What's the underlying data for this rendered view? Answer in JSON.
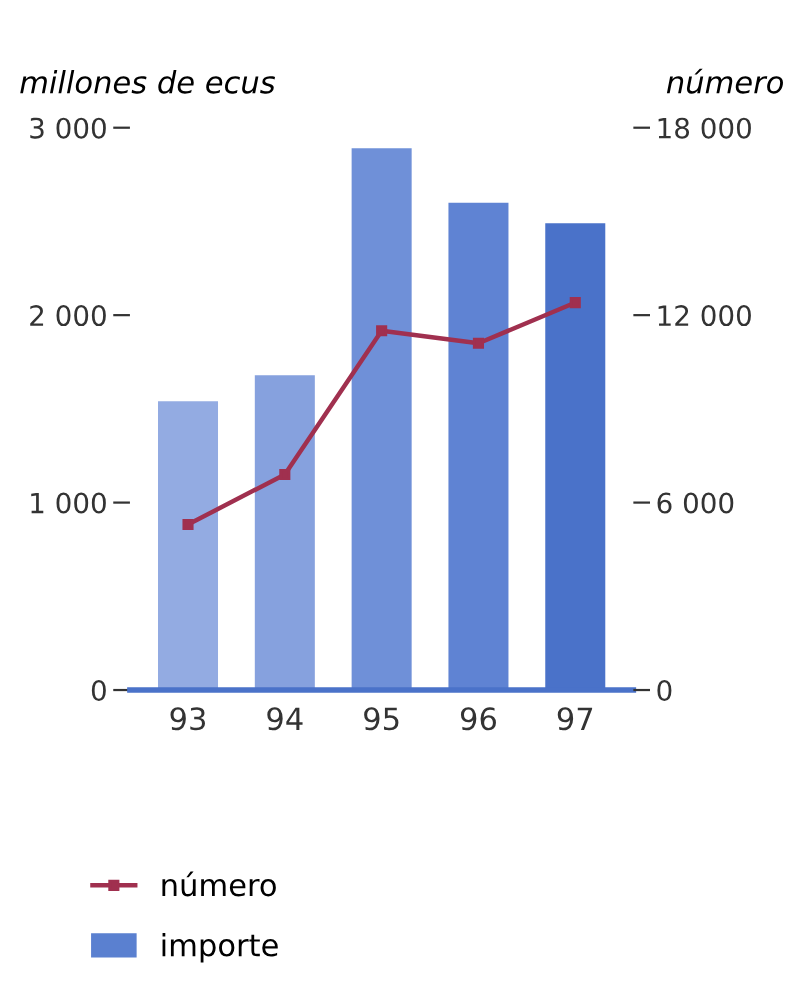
{
  "chart_data": {
    "type": "bar",
    "categories": [
      "93",
      "94",
      "95",
      "96",
      "97"
    ],
    "ylabel": "millones de ecus",
    "y2label": "número",
    "series": [
      {
        "name": "importe",
        "color": "#5a80d0",
        "colors": [
          "#93abe2",
          "#86a1de",
          "#6f90d8",
          "#5f83d3",
          "#4a72c9"
        ],
        "values": [
          1540,
          1680,
          2890,
          2600,
          2490
        ]
      },
      {
        "name": "número",
        "type": "line",
        "axis": "y2",
        "color": "#a0304f",
        "values": [
          5300,
          6900,
          11500,
          11100,
          12400
        ]
      }
    ],
    "ylim": [
      0,
      3000
    ],
    "yticks": [
      0,
      {
        "value": 1000,
        "label": "1 000"
      },
      {
        "value": 2000,
        "label": "2 000"
      },
      {
        "value": 3000,
        "label": "3 000"
      }
    ],
    "y2lim": [
      0,
      18000
    ],
    "y2ticks": [
      0,
      {
        "value": 6000,
        "label": "6 000"
      },
      {
        "value": 12000,
        "label": "12 000"
      },
      {
        "value": 18000,
        "label": "18 000"
      }
    ],
    "grid": false,
    "legend": "bottom left",
    "marker": "square",
    "line_style": "solid"
  }
}
